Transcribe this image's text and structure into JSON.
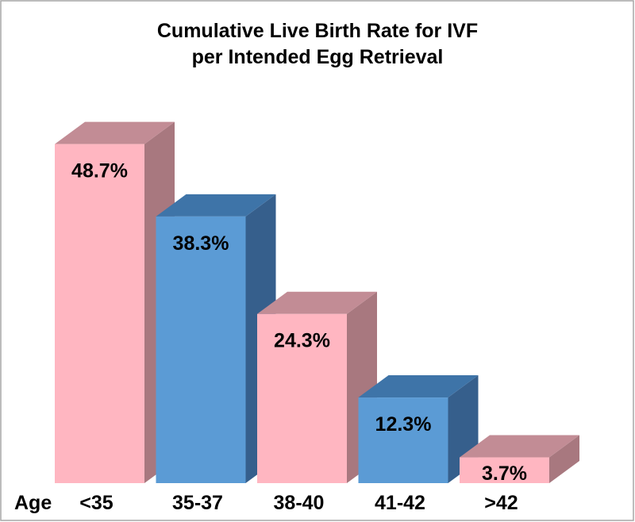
{
  "chart_data": {
    "type": "bar",
    "title_lines": [
      "Cumulative Live Birth Rate for IVF",
      "per Intended Egg Retrieval"
    ],
    "xlabel": "Age",
    "ylabel": "",
    "categories": [
      "<35",
      "35-37",
      "38-40",
      "41-42",
      ">42"
    ],
    "values": [
      48.7,
      38.3,
      24.3,
      12.3,
      3.7
    ],
    "data_labels": [
      "48.7%",
      "38.3%",
      "24.3%",
      "12.3%",
      "3.7%"
    ],
    "ylim": [
      0,
      55
    ],
    "grid": false,
    "legend": "none",
    "style": "3d-column",
    "bar_colors": [
      {
        "front": "#FFB6C1",
        "top": "#C28C95",
        "side": "#A8787F"
      },
      {
        "front": "#5B9BD5",
        "top": "#3E74A8",
        "side": "#365F8C"
      },
      {
        "front": "#FFB6C1",
        "top": "#C28C95",
        "side": "#A8787F"
      },
      {
        "front": "#5B9BD5",
        "top": "#3E74A8",
        "side": "#365F8C"
      },
      {
        "front": "#FFB6C1",
        "top": "#C28C95",
        "side": "#A8787F"
      }
    ],
    "frame_color": "#A6A6A6"
  }
}
